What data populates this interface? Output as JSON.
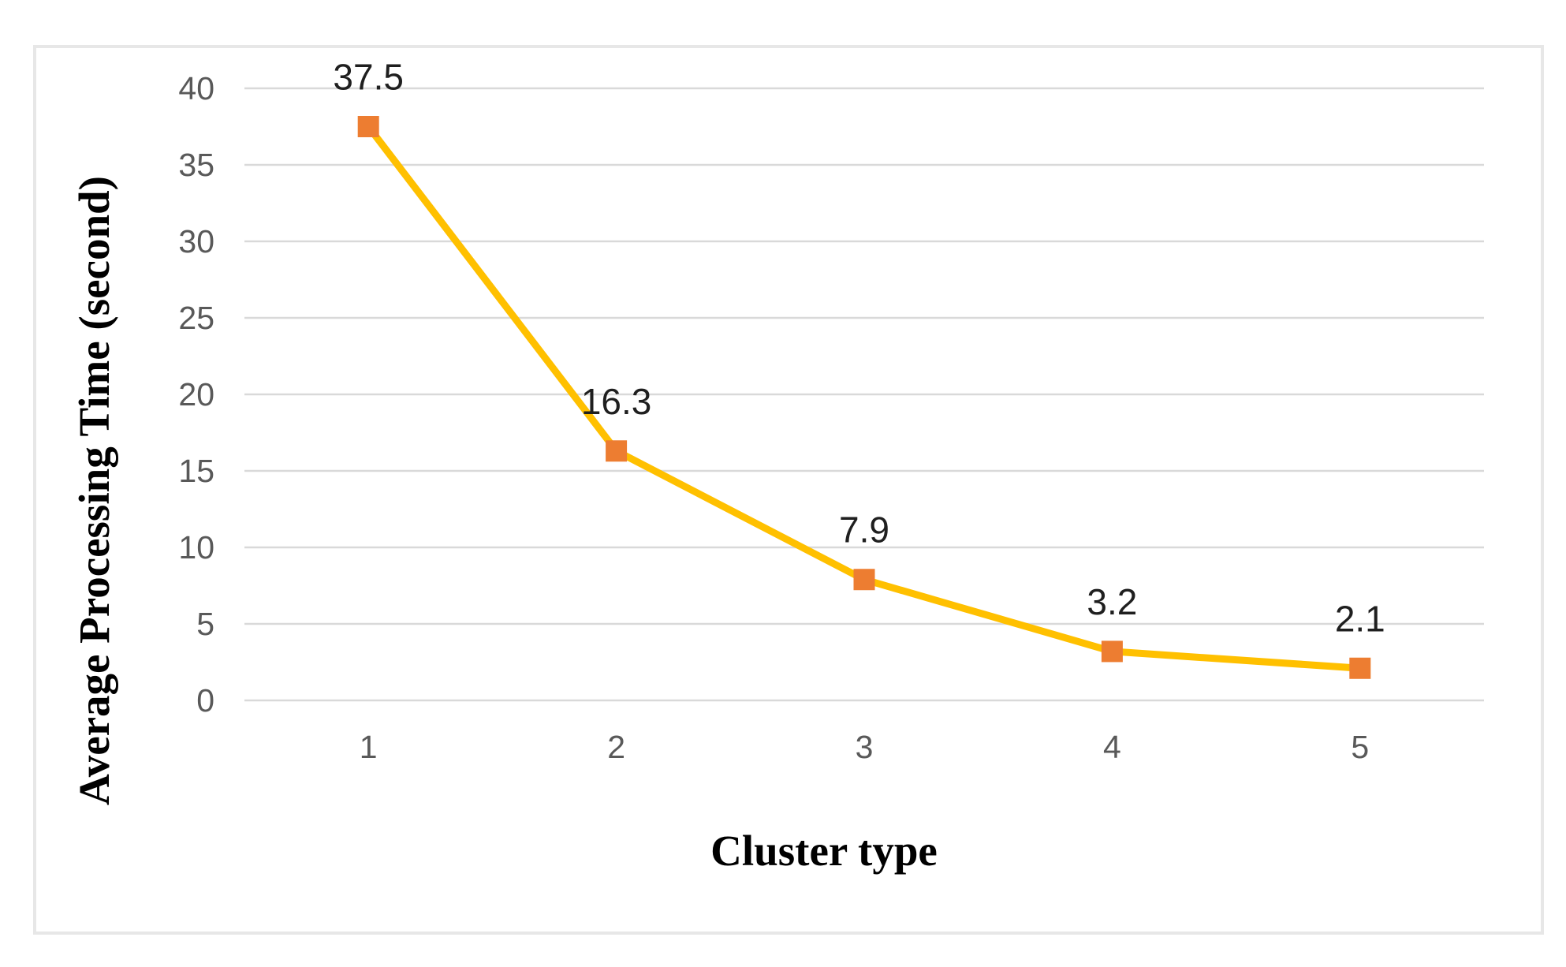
{
  "figure": {
    "background_color": "#ffffff",
    "border_color": "#e7e7e7"
  },
  "chart_data": {
    "type": "line",
    "categories": [
      "1",
      "2",
      "3",
      "4",
      "5"
    ],
    "values": [
      37.5,
      16.3,
      7.9,
      3.2,
      2.1
    ],
    "data_labels": [
      "37.5",
      "16.3",
      "7.9",
      "3.2",
      "2.1"
    ],
    "title": "",
    "xlabel": "Cluster type",
    "ylabel": "Average Processing Time (second)",
    "ylim": [
      0,
      40
    ],
    "ytick_step": 5,
    "ytick_labels": [
      "0",
      "5",
      "10",
      "15",
      "20",
      "25",
      "30",
      "35",
      "40"
    ],
    "grid": true,
    "legend": "none",
    "line_color": "#FFC000",
    "marker_color": "#ED7D31",
    "marker_shape": "square",
    "gridline_color": "#D9D9D9",
    "tick_label_color": "#595959",
    "data_label_color": "#1f1f1f"
  }
}
